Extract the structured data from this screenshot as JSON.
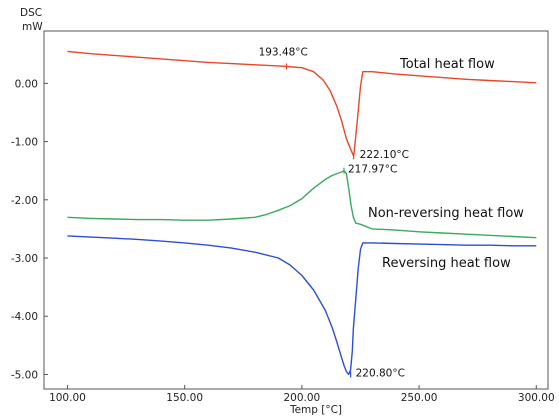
{
  "chart_data": {
    "type": "line",
    "xlabel": "Temp  [°C]",
    "ylabel_lines": [
      "DSC",
      "mW"
    ],
    "xlim": [
      90,
      305
    ],
    "ylim": [
      -5.25,
      0.9
    ],
    "xticks": [
      100,
      150,
      200,
      250,
      300
    ],
    "yticks": [
      0,
      -1,
      -2,
      -3,
      -4,
      -5
    ],
    "xtick_labels": [
      "100.00",
      "150.00",
      "200.00",
      "250.00",
      "300.00"
    ],
    "ytick_labels": [
      "0.00",
      "-1.00",
      "-2.00",
      "-3.00",
      "-4.00",
      "-5.00"
    ],
    "grid": false,
    "series": [
      {
        "name": "Total heat flow",
        "color": "#e8472a",
        "x": [
          100,
          110,
          120,
          130,
          140,
          150,
          160,
          170,
          180,
          190,
          193.48,
          200,
          205,
          209,
          212,
          215,
          217,
          219,
          221,
          222.1,
          223,
          224,
          225,
          226,
          230,
          240,
          250,
          260,
          270,
          280,
          290,
          300
        ],
        "y": [
          0.55,
          0.51,
          0.48,
          0.45,
          0.42,
          0.39,
          0.36,
          0.34,
          0.32,
          0.3,
          0.29,
          0.27,
          0.2,
          0.06,
          -0.12,
          -0.4,
          -0.65,
          -0.95,
          -1.15,
          -1.25,
          -0.9,
          -0.5,
          -0.05,
          0.2,
          0.2,
          0.16,
          0.13,
          0.1,
          0.07,
          0.05,
          0.03,
          0.01
        ]
      },
      {
        "name": "Non-reversing heat flow",
        "color": "#3aaa5c",
        "x": [
          100,
          110,
          120,
          130,
          140,
          150,
          160,
          170,
          180,
          185,
          190,
          195,
          200,
          205,
          210,
          213,
          215,
          217,
          217.97,
          219,
          220,
          221,
          222,
          223,
          225,
          230,
          240,
          250,
          260,
          270,
          280,
          290,
          300
        ],
        "y": [
          -2.3,
          -2.32,
          -2.33,
          -2.34,
          -2.34,
          -2.35,
          -2.35,
          -2.33,
          -2.3,
          -2.25,
          -2.18,
          -2.1,
          -1.98,
          -1.8,
          -1.65,
          -1.58,
          -1.55,
          -1.52,
          -1.5,
          -1.55,
          -1.8,
          -2.1,
          -2.3,
          -2.4,
          -2.42,
          -2.5,
          -2.52,
          -2.55,
          -2.57,
          -2.59,
          -2.61,
          -2.63,
          -2.65
        ]
      },
      {
        "name": "Reversing heat flow",
        "color": "#2b4fd6",
        "x": [
          100,
          110,
          120,
          130,
          140,
          150,
          160,
          170,
          180,
          190,
          195,
          200,
          205,
          210,
          213,
          215,
          217,
          218,
          219,
          220,
          220.8,
          221.5,
          222,
          223,
          224,
          225,
          226,
          228,
          230,
          240,
          250,
          260,
          270,
          280,
          290,
          300
        ],
        "y": [
          -2.62,
          -2.64,
          -2.66,
          -2.68,
          -2.71,
          -2.74,
          -2.78,
          -2.83,
          -2.9,
          -3.0,
          -3.12,
          -3.3,
          -3.55,
          -3.9,
          -4.2,
          -4.45,
          -4.72,
          -4.85,
          -4.95,
          -5.0,
          -4.92,
          -4.6,
          -4.2,
          -3.7,
          -3.2,
          -2.85,
          -2.74,
          -2.74,
          -2.74,
          -2.75,
          -2.76,
          -2.77,
          -2.78,
          -2.78,
          -2.79,
          -2.79
        ]
      }
    ],
    "annotations": [
      {
        "text": "193.48°C",
        "x": 193.48,
        "y": 0.29,
        "color": "#e8472a"
      },
      {
        "text": "222.10°C",
        "x": 222.1,
        "y": -1.25,
        "color": "#e8472a"
      },
      {
        "text": "217.97°C",
        "x": 217.97,
        "y": -1.5,
        "color": "#3aaa5c"
      },
      {
        "text": "220.80°C",
        "x": 220.8,
        "y": -5.0,
        "color": "#2b4fd6"
      }
    ]
  }
}
